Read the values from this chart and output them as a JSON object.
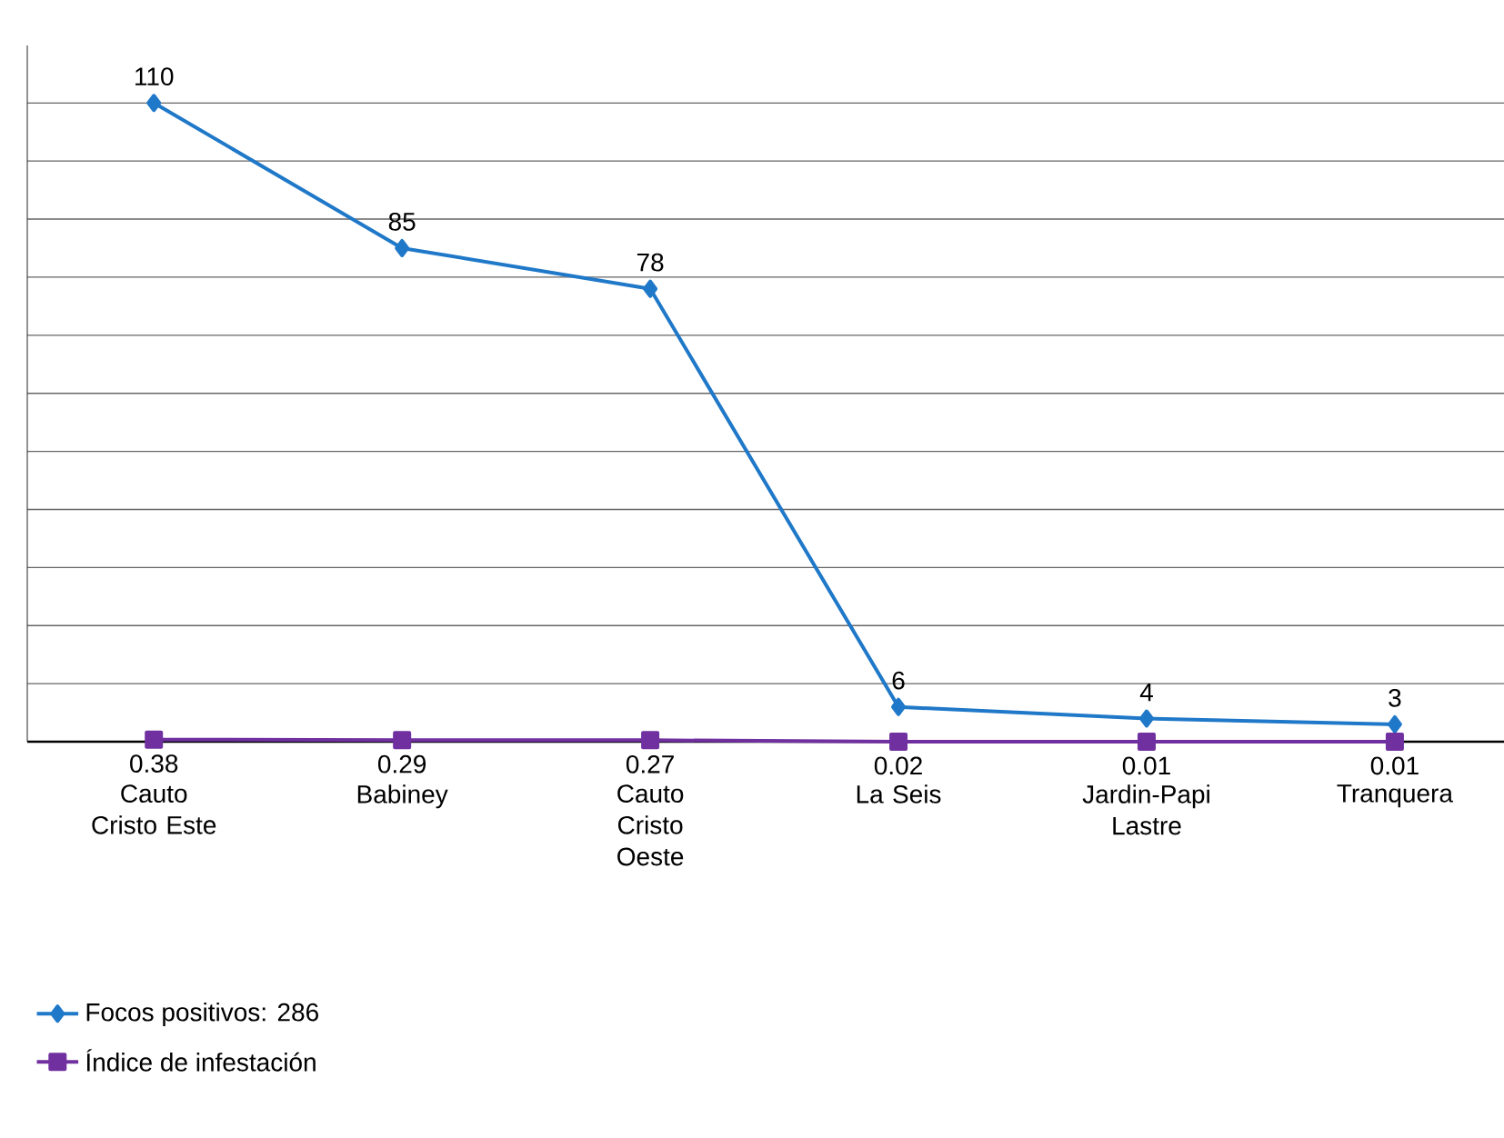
{
  "chart_data": {
    "type": "line",
    "categories": [
      "Cauto Cristo Este",
      "Babiney",
      "Cauto Cristo Oeste",
      "La Seis",
      "Jardin-Papi Lastre",
      "Tranquera"
    ],
    "series": [
      {
        "name": "Focos positivos: 286",
        "color": "#1f78c8",
        "marker": "diamond",
        "values": [
          110,
          85,
          78,
          6,
          4,
          3
        ]
      },
      {
        "name": "Índice de infestación",
        "color": "#7030a0",
        "marker": "square",
        "values": [
          0.38,
          0.29,
          0.27,
          0.02,
          0.01,
          0.01
        ]
      }
    ],
    "grid": "y",
    "tick_labels": "x",
    "data_labels": true,
    "legend": "bottom left",
    "line_style": "solid"
  }
}
